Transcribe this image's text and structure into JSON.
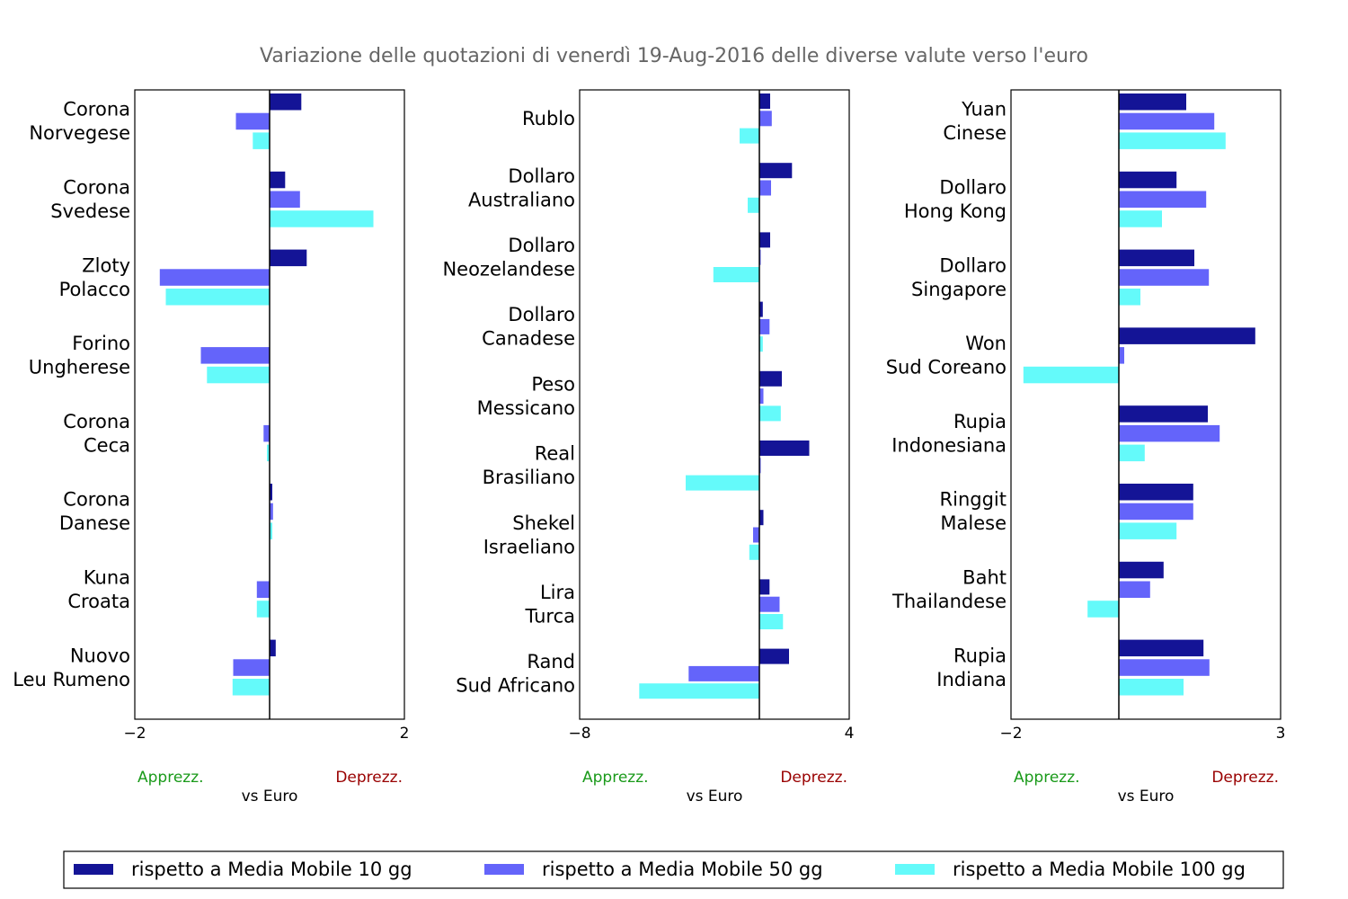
{
  "title": "Variazione delle quotazioni di venerdì 19-Aug-2016 delle diverse valute verso l'euro",
  "colors": {
    "ma10": "#141496",
    "ma50": "#6464fa",
    "ma100": "#64fafa",
    "apprezz": "#1a9a1a",
    "deprezz": "#990000",
    "title": "#666666"
  },
  "chart_data": [
    {
      "type": "bar",
      "orientation": "horizontal",
      "categories": [
        "Corona Norvegese",
        "Corona Svedese",
        "Zloty Polacco",
        "Forino Ungherese",
        "Corona Ceca",
        "Corona Danese",
        "Kuna Croata",
        "Nuovo Leu Rumeno"
      ],
      "category_lines": [
        [
          "Corona",
          "Norvegese"
        ],
        [
          "Corona",
          "Svedese"
        ],
        [
          "Zloty",
          "Polacco"
        ],
        [
          "Forino",
          "Ungherese"
        ],
        [
          "Corona",
          "Ceca"
        ],
        [
          "Corona",
          "Danese"
        ],
        [
          "Kuna",
          "Croata"
        ],
        [
          "Nuovo",
          "Leu Rumeno"
        ]
      ],
      "series": [
        {
          "name": "rispetto a Media Mobile 10 gg",
          "values": [
            0.47,
            0.23,
            0.55,
            0.0,
            0.0,
            0.04,
            0.0,
            0.09
          ]
        },
        {
          "name": "rispetto a Media Mobile 50 gg",
          "values": [
            -0.5,
            0.45,
            -1.63,
            -1.02,
            -0.09,
            0.05,
            -0.19,
            -0.54
          ]
        },
        {
          "name": "rispetto a Media Mobile 100 gg",
          "values": [
            -0.25,
            1.54,
            -1.54,
            -0.93,
            -0.04,
            0.04,
            -0.19,
            -0.55
          ]
        }
      ],
      "xlim": [
        -2,
        2
      ],
      "xticks": [
        "−2",
        "2"
      ],
      "xlabel": "vs Euro",
      "left_note": "Apprezz.",
      "right_note": "Deprezz."
    },
    {
      "type": "bar",
      "orientation": "horizontal",
      "categories": [
        "Rublo",
        "Dollaro Australiano",
        "Dollaro Neozelandese",
        "Dollaro Canadese",
        "Peso Messicano",
        "Real Brasiliano",
        "Shekel Israeliano",
        "Lira Turca",
        "Rand Sud Africano"
      ],
      "category_lines": [
        [
          "Rublo"
        ],
        [
          "Dollaro",
          "Australiano"
        ],
        [
          "Dollaro",
          "Neozelandese"
        ],
        [
          "Dollaro",
          "Canadese"
        ],
        [
          "Peso",
          "Messicano"
        ],
        [
          "Real",
          "Brasiliano"
        ],
        [
          "Shekel",
          "Israeliano"
        ],
        [
          "Lira",
          "Turca"
        ],
        [
          "Rand",
          "Sud Africano"
        ]
      ],
      "series": [
        {
          "name": "rispetto a Media Mobile 10 gg",
          "values": [
            0.48,
            1.45,
            0.48,
            0.15,
            1.0,
            2.22,
            0.18,
            0.45,
            1.32
          ]
        },
        {
          "name": "rispetto a Media Mobile 50 gg",
          "values": [
            0.55,
            0.52,
            0.06,
            0.45,
            0.18,
            0.06,
            -0.28,
            0.9,
            -3.15
          ]
        },
        {
          "name": "rispetto a Media Mobile 100 gg",
          "values": [
            -0.88,
            -0.52,
            -2.05,
            0.15,
            0.95,
            -3.28,
            -0.45,
            1.05,
            -5.35
          ]
        }
      ],
      "xlim": [
        -8,
        4
      ],
      "xticks": [
        "−8",
        "4"
      ],
      "xlabel": "vs Euro",
      "left_note": "Apprezz.",
      "right_note": "Deprezz."
    },
    {
      "type": "bar",
      "orientation": "horizontal",
      "categories": [
        "Yuan Cinese",
        "Dollaro Hong Kong",
        "Dollaro Singapore",
        "Won Sud Coreano",
        "Rupia Indonesiana",
        "Ringgit Malese",
        "Baht Thailandese",
        "Rupia Indiana"
      ],
      "category_lines": [
        [
          "Yuan",
          "Cinese"
        ],
        [
          "Dollaro",
          "Hong Kong"
        ],
        [
          "Dollaro",
          "Singapore"
        ],
        [
          "Won",
          "Sud Coreano"
        ],
        [
          "Rupia",
          "Indonesiana"
        ],
        [
          "Ringgit",
          "Malese"
        ],
        [
          "Baht",
          "Thailandese"
        ],
        [
          "Rupia",
          "Indiana"
        ]
      ],
      "series": [
        {
          "name": "rispetto a Media Mobile 10 gg",
          "values": [
            1.25,
            1.07,
            1.4,
            2.53,
            1.65,
            1.38,
            0.83,
            1.57
          ]
        },
        {
          "name": "rispetto a Media Mobile 50 gg",
          "values": [
            1.77,
            1.62,
            1.67,
            0.1,
            1.87,
            1.38,
            0.58,
            1.68
          ]
        },
        {
          "name": "rispetto a Media Mobile 100 gg",
          "values": [
            1.98,
            0.8,
            0.4,
            -1.77,
            0.48,
            1.07,
            -0.58,
            1.2
          ]
        }
      ],
      "xlim": [
        -2,
        3
      ],
      "xticks": [
        "−2",
        "3"
      ],
      "xlabel": "vs Euro",
      "left_note": "Apprezz.",
      "right_note": "Deprezz."
    }
  ],
  "legend": {
    "placement": "bottom",
    "items": [
      "rispetto a Media Mobile 10 gg",
      "rispetto a Media Mobile 50 gg",
      "rispetto a Media Mobile 100 gg"
    ]
  }
}
